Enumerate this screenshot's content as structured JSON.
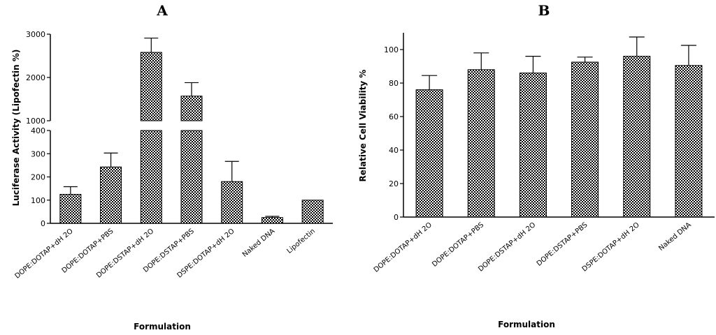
{
  "chart_data": [
    {
      "panel": "A",
      "type": "bar",
      "xlabel": "Formulation",
      "ylabel": "Luciferase Activity (Lipofectin %)",
      "categories": [
        "DOPE:DOTAP+dH 2O",
        "DOPE:DOTAP+PBS",
        "DOPE:DSTAP+dH 2O",
        "DOPE:DSTAP+PBS",
        "DSPE:DOTAP+dH 2O",
        "Naked DNA",
        "Lipofectin"
      ],
      "values": [
        125,
        243,
        2580,
        1570,
        180,
        25,
        100
      ],
      "errors": [
        33,
        60,
        330,
        310,
        87,
        5,
        0
      ],
      "axis_break": {
        "lower": [
          0,
          400
        ],
        "upper": [
          1000,
          3000
        ]
      },
      "lower_ticks": [
        "0",
        "100",
        "200",
        "300",
        "400"
      ],
      "upper_ticks": [
        "1000",
        "2000",
        "3000"
      ],
      "fill": "checkerboard"
    },
    {
      "panel": "B",
      "type": "bar",
      "xlabel": "Formulation",
      "ylabel": "Relative Cell Viability %",
      "categories": [
        "DOPE:DOTAP+dH 2O",
        "DOPE:DOTAP+PBS",
        "DOPE:DSTAP+dH 2O",
        "DOPE:DSTAP+PBS",
        "DSPE:DOTAP+dH 2O",
        "Naked DNA"
      ],
      "values": [
        76,
        88,
        86,
        92.5,
        96,
        90.5
      ],
      "errors": [
        8.5,
        10,
        10,
        3,
        11.5,
        12
      ],
      "ylim": [
        0,
        110
      ],
      "yticks": [
        "0",
        "20",
        "40",
        "60",
        "80",
        "100"
      ],
      "fill": "checkerboard"
    }
  ]
}
